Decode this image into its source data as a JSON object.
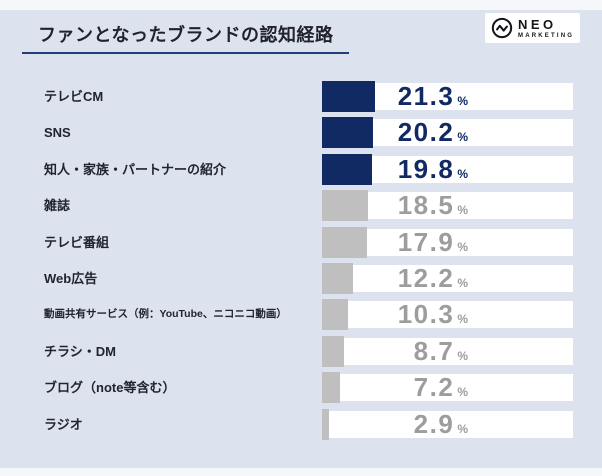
{
  "header": {
    "title": "ファンとなったブランドの認知経路",
    "logo": {
      "name": "NEO",
      "sub": "MARKETING",
      "icon": "pulse-circle-icon"
    }
  },
  "colors": {
    "background": "#dce3ee",
    "navy": "#112a63",
    "gray_bar": "#bfbfbf",
    "gray_text": "#9d9d9d",
    "underline": "#273c7a",
    "track": "#ffffff"
  },
  "chart_data": {
    "type": "bar",
    "orientation": "horizontal",
    "title": "ファンとなったブランドの認知経路",
    "unit": "%",
    "xlim": [
      0,
      100
    ],
    "grid": false,
    "legend": "none",
    "highlight_top_n": 3,
    "categories": [
      "テレビCM",
      "SNS",
      "知人・家族・パートナーの紹介",
      "雑誌",
      "テレビ番組",
      "Web広告",
      "動画共有サービス（例：YouTube、ニコニコ動画）",
      "チラシ・DM",
      "ブログ（note等含む）",
      "ラジオ"
    ],
    "values": [
      21.3,
      20.2,
      19.8,
      18.5,
      17.9,
      12.2,
      10.3,
      8.7,
      7.2,
      2.9
    ],
    "value_labels": [
      "21.3",
      "20.2",
      "19.8",
      "18.5",
      "17.9",
      "12.2",
      "10.3",
      "8.7",
      "7.2",
      "2.9"
    ]
  }
}
